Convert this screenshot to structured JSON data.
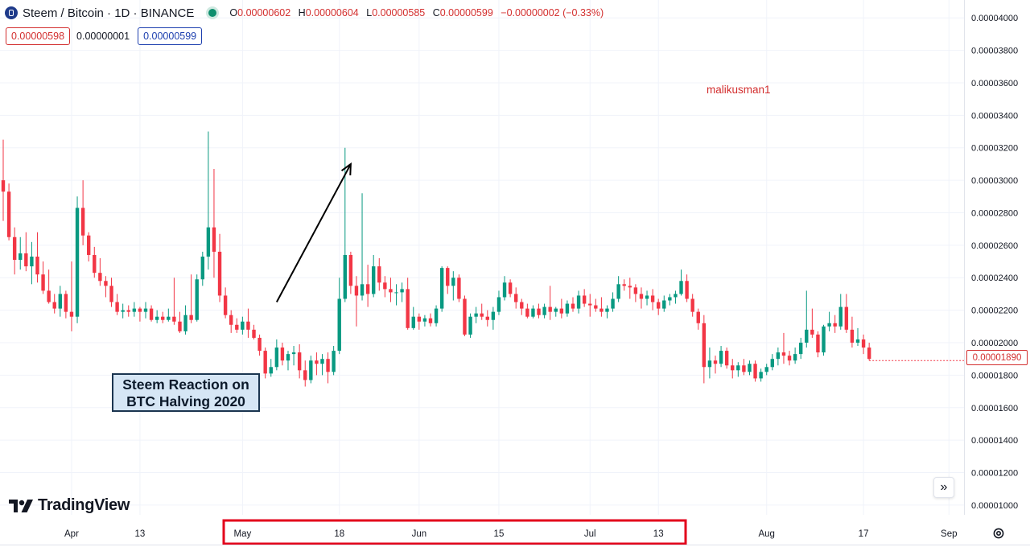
{
  "legend": {
    "title": "Steem / Bitcoin · 1D · BINANCE",
    "ohlc": [
      {
        "k": "O",
        "v": "0.00000602"
      },
      {
        "k": "H",
        "v": "0.00000604"
      },
      {
        "k": "L",
        "v": "0.00000585"
      },
      {
        "k": "C",
        "v": "0.00000599"
      }
    ],
    "change": "−0.00000002 (−0.33%)"
  },
  "price_boxes": {
    "sell": "0.00000598",
    "spread": "0.00000001",
    "buy": "0.00000599"
  },
  "annotation": {
    "line1": "Steem Reaction on",
    "line2": "BTC Halving 2020"
  },
  "watermark_user": "malikusman1",
  "brand": "TradingView",
  "last_price": "0.00001890",
  "colors": {
    "up": "#089981",
    "down": "#f23645",
    "grid": "#f0f3fa",
    "highlight": "#e3001b"
  },
  "chart_data": {
    "type": "candlestick",
    "title": "Steem / Bitcoin · 1D · BINANCE",
    "xlabel": "",
    "ylabel": "",
    "ylim": [
      9.4e-06,
      4.11e-05
    ],
    "yticks": [
      1e-05,
      1.2e-05,
      1.4e-05,
      1.6e-05,
      1.8e-05,
      2e-05,
      2.2e-05,
      2.4e-05,
      2.6e-05,
      2.8e-05,
      3e-05,
      3.2e-05,
      3.4e-05,
      3.6e-05,
      3.8e-05,
      4e-05
    ],
    "ytick_labels": [
      "0.00001000",
      "0.00001200",
      "0.00001400",
      "0.00001600",
      "0.00001800",
      "0.00002000",
      "0.00002200",
      "0.00002400",
      "0.00002600",
      "0.00002800",
      "0.00003000",
      "0.00003200",
      "0.00003400",
      "0.00003600",
      "0.00003800",
      "0.00004000"
    ],
    "xtick_labels": [
      {
        "label": "Apr",
        "index": 12
      },
      {
        "label": "13",
        "index": 24
      },
      {
        "label": "May",
        "index": 42
      },
      {
        "label": "18",
        "index": 59
      },
      {
        "label": "Jun",
        "index": 73
      },
      {
        "label": "15",
        "index": 87
      },
      {
        "label": "Jul",
        "index": 103
      },
      {
        "label": "13",
        "index": 115
      },
      {
        "label": "Aug",
        "index": 134
      },
      {
        "label": "17",
        "index": 151
      },
      {
        "label": "Sep",
        "index": 166
      }
    ],
    "highlighted_x_range": {
      "from_label": "May",
      "to_label": "13"
    },
    "annotation_arrow": {
      "from": {
        "index": 48,
        "price": 2.25e-05
      },
      "to": {
        "index": 61,
        "price": 3.1e-05
      }
    },
    "last_price": 1.89e-05,
    "candles": [
      [
        3e-05,
        3.25e-05,
        2.75e-05,
        2.93e-05
      ],
      [
        2.93e-05,
        2.98e-05,
        2.63e-05,
        2.65e-05
      ],
      [
        2.65e-05,
        2.71e-05,
        2.42e-05,
        2.51e-05
      ],
      [
        2.51e-05,
        2.65e-05,
        2.45e-05,
        2.55e-05
      ],
      [
        2.55e-05,
        2.68e-05,
        2.44e-05,
        2.47e-05
      ],
      [
        2.47e-05,
        2.62e-05,
        2.36e-05,
        2.53e-05
      ],
      [
        2.53e-05,
        2.68e-05,
        2.37e-05,
        2.42e-05
      ],
      [
        2.42e-05,
        2.5e-05,
        2.3e-05,
        2.32e-05
      ],
      [
        2.32e-05,
        2.45e-05,
        2.24e-05,
        2.25e-05
      ],
      [
        2.25e-05,
        2.3e-05,
        2.18e-05,
        2.21e-05
      ],
      [
        2.21e-05,
        2.35e-05,
        2.16e-05,
        2.3e-05
      ],
      [
        2.3e-05,
        2.32e-05,
        2.15e-05,
        2.19e-05
      ],
      [
        2.19e-05,
        2.5e-05,
        2.07e-05,
        2.16e-05
      ],
      [
        2.16e-05,
        2.9e-05,
        2.12e-05,
        2.83e-05
      ],
      [
        2.83e-05,
        3e-05,
        2.6e-05,
        2.66e-05
      ],
      [
        2.66e-05,
        2.68e-05,
        2.5e-05,
        2.54e-05
      ],
      [
        2.54e-05,
        2.59e-05,
        2.4e-05,
        2.43e-05
      ],
      [
        2.43e-05,
        2.52e-05,
        2.35e-05,
        2.38e-05
      ],
      [
        2.38e-05,
        2.41e-05,
        2.28e-05,
        2.35e-05
      ],
      [
        2.35e-05,
        2.4e-05,
        2.22e-05,
        2.25e-05
      ],
      [
        2.25e-05,
        2.3e-05,
        2.17e-05,
        2.19e-05
      ],
      [
        2.19e-05,
        2.24e-05,
        2.15e-05,
        2.2e-05
      ],
      [
        2.2e-05,
        2.23e-05,
        2.16e-05,
        2.19e-05
      ],
      [
        2.19e-05,
        2.25e-05,
        2.16e-05,
        2.21e-05
      ],
      [
        2.21e-05,
        2.22e-05,
        2.13e-05,
        2.19e-05
      ],
      [
        2.19e-05,
        2.25e-05,
        2.15e-05,
        2.21e-05
      ],
      [
        2.21e-05,
        2.23e-05,
        2.13e-05,
        2.14e-05
      ],
      [
        2.14e-05,
        2.2e-05,
        2.12e-05,
        2.16e-05
      ],
      [
        2.16e-05,
        2.19e-05,
        2.12e-05,
        2.14e-05
      ],
      [
        2.14e-05,
        2.21e-05,
        2.13e-05,
        2.16e-05
      ],
      [
        2.16e-05,
        2.4e-05,
        2.11e-05,
        2.13e-05
      ],
      [
        2.13e-05,
        2.19e-05,
        2.06e-05,
        2.07e-05
      ],
      [
        2.07e-05,
        2.23e-05,
        2.05e-05,
        2.17e-05
      ],
      [
        2.17e-05,
        2.42e-05,
        2.12e-05,
        2.14e-05
      ],
      [
        2.14e-05,
        2.42e-05,
        2.13e-05,
        2.39e-05
      ],
      [
        2.39e-05,
        2.56e-05,
        2.35e-05,
        2.53e-05
      ],
      [
        2.53e-05,
        3.3e-05,
        2.45e-05,
        2.71e-05
      ],
      [
        2.71e-05,
        3.07e-05,
        2.4e-05,
        2.56e-05
      ],
      [
        2.56e-05,
        2.67e-05,
        2.25e-05,
        2.29e-05
      ],
      [
        2.29e-05,
        2.34e-05,
        2.15e-05,
        2.17e-05
      ],
      [
        2.17e-05,
        2.2e-05,
        2.06e-05,
        2.11e-05
      ],
      [
        2.11e-05,
        2.15e-05,
        2.06e-05,
        2.08e-05
      ],
      [
        2.08e-05,
        2.16e-05,
        2.05e-05,
        2.13e-05
      ],
      [
        2.13e-05,
        2.21e-05,
        2.03e-05,
        2.08e-05
      ],
      [
        2.08e-05,
        2.11e-05,
        2.02e-05,
        2.03e-05
      ],
      [
        2.03e-05,
        2.05e-05,
        1.92e-05,
        1.95e-05
      ],
      [
        1.95e-05,
        1.97e-05,
        1.78e-05,
        1.81e-05
      ],
      [
        1.81e-05,
        1.9e-05,
        1.79e-05,
        1.85e-05
      ],
      [
        1.85e-05,
        2.02e-05,
        1.83e-05,
        1.97e-05
      ],
      [
        1.97e-05,
        2e-05,
        1.86e-05,
        1.89e-05
      ],
      [
        1.89e-05,
        1.95e-05,
        1.83e-05,
        1.93e-05
      ],
      [
        1.93e-05,
        1.98e-05,
        1.86e-05,
        1.94e-05
      ],
      [
        1.94e-05,
        1.99e-05,
        1.78e-05,
        1.83e-05
      ],
      [
        1.83e-05,
        1.89e-05,
        1.73e-05,
        1.77e-05
      ],
      [
        1.77e-05,
        1.92e-05,
        1.75e-05,
        1.89e-05
      ],
      [
        1.89e-05,
        1.94e-05,
        1.8e-05,
        1.87e-05
      ],
      [
        1.87e-05,
        1.93e-05,
        1.8e-05,
        1.9e-05
      ],
      [
        1.9e-05,
        1.94e-05,
        1.75e-05,
        1.82e-05
      ],
      [
        1.82e-05,
        1.98e-05,
        1.8e-05,
        1.95e-05
      ],
      [
        1.95e-05,
        2.4e-05,
        1.93e-05,
        2.27e-05
      ],
      [
        2.27e-05,
        3.2e-05,
        2.25e-05,
        2.54e-05
      ],
      [
        2.54e-05,
        2.56e-05,
        2.3e-05,
        2.35e-05
      ],
      [
        2.35e-05,
        2.41e-05,
        2.1e-05,
        2.29e-05
      ],
      [
        2.29e-05,
        2.92e-05,
        2.26e-05,
        2.36e-05
      ],
      [
        2.36e-05,
        2.48e-05,
        2.22e-05,
        2.3e-05
      ],
      [
        2.3e-05,
        2.54e-05,
        2.28e-05,
        2.47e-05
      ],
      [
        2.47e-05,
        2.52e-05,
        2.32e-05,
        2.37e-05
      ],
      [
        2.37e-05,
        2.41e-05,
        2.28e-05,
        2.33e-05
      ],
      [
        2.33e-05,
        2.4e-05,
        2.25e-05,
        2.31e-05
      ],
      [
        2.31e-05,
        2.36e-05,
        2.23e-05,
        2.31e-05
      ],
      [
        2.31e-05,
        2.37e-05,
        2.25e-05,
        2.33e-05
      ],
      [
        2.33e-05,
        2.4e-05,
        2.08e-05,
        2.09e-05
      ],
      [
        2.09e-05,
        2.22e-05,
        2.08e-05,
        2.16e-05
      ],
      [
        2.16e-05,
        2.18e-05,
        2.08e-05,
        2.13e-05
      ],
      [
        2.13e-05,
        2.17e-05,
        2.1e-05,
        2.15e-05
      ],
      [
        2.15e-05,
        2.18e-05,
        2.1e-05,
        2.12e-05
      ],
      [
        2.12e-05,
        2.23e-05,
        2.1e-05,
        2.21e-05
      ],
      [
        2.21e-05,
        2.47e-05,
        2.19e-05,
        2.46e-05
      ],
      [
        2.46e-05,
        2.47e-05,
        2.3e-05,
        2.35e-05
      ],
      [
        2.35e-05,
        2.44e-05,
        2.26e-05,
        2.4e-05
      ],
      [
        2.4e-05,
        2.42e-05,
        2.25e-05,
        2.27e-05
      ],
      [
        2.27e-05,
        2.29e-05,
        2.04e-05,
        2.05e-05
      ],
      [
        2.05e-05,
        2.18e-05,
        2.03e-05,
        2.16e-05
      ],
      [
        2.16e-05,
        2.22e-05,
        2.12e-05,
        2.18e-05
      ],
      [
        2.18e-05,
        2.24e-05,
        2.14e-05,
        2.16e-05
      ],
      [
        2.16e-05,
        2.2e-05,
        2.1e-05,
        2.14e-05
      ],
      [
        2.14e-05,
        2.22e-05,
        2.08e-05,
        2.19e-05
      ],
      [
        2.19e-05,
        2.32e-05,
        2.17e-05,
        2.28e-05
      ],
      [
        2.28e-05,
        2.41e-05,
        2.26e-05,
        2.37e-05
      ],
      [
        2.37e-05,
        2.39e-05,
        2.28e-05,
        2.3e-05
      ],
      [
        2.3e-05,
        2.34e-05,
        2.21e-05,
        2.25e-05
      ],
      [
        2.25e-05,
        2.27e-05,
        2.17e-05,
        2.21e-05
      ],
      [
        2.21e-05,
        2.24e-05,
        2.15e-05,
        2.16e-05
      ],
      [
        2.16e-05,
        2.23e-05,
        2.15e-05,
        2.21e-05
      ],
      [
        2.21e-05,
        2.24e-05,
        2.15e-05,
        2.17e-05
      ],
      [
        2.17e-05,
        2.24e-05,
        2.15e-05,
        2.22e-05
      ],
      [
        2.22e-05,
        2.35e-05,
        2.14e-05,
        2.19e-05
      ],
      [
        2.19e-05,
        2.22e-05,
        2.16e-05,
        2.21e-05
      ],
      [
        2.21e-05,
        2.27e-05,
        2.15e-05,
        2.18e-05
      ],
      [
        2.18e-05,
        2.26e-05,
        2.16e-05,
        2.24e-05
      ],
      [
        2.24e-05,
        2.28e-05,
        2.19e-05,
        2.21e-05
      ],
      [
        2.21e-05,
        2.32e-05,
        2.18e-05,
        2.29e-05
      ],
      [
        2.29e-05,
        2.33e-05,
        2.22e-05,
        2.24e-05
      ],
      [
        2.24e-05,
        2.3e-05,
        2.16e-05,
        2.23e-05
      ],
      [
        2.23e-05,
        2.27e-05,
        2.19e-05,
        2.21e-05
      ],
      [
        2.21e-05,
        2.28e-05,
        2.16e-05,
        2.19e-05
      ],
      [
        2.19e-05,
        2.23e-05,
        2.15e-05,
        2.21e-05
      ],
      [
        2.21e-05,
        2.31e-05,
        2.19e-05,
        2.27e-05
      ],
      [
        2.27e-05,
        2.41e-05,
        2.25e-05,
        2.36e-05
      ],
      [
        2.36e-05,
        2.39e-05,
        2.32e-05,
        2.35e-05
      ],
      [
        2.35e-05,
        2.4e-05,
        2.27e-05,
        2.34e-05
      ],
      [
        2.34e-05,
        2.36e-05,
        2.25e-05,
        2.3e-05
      ],
      [
        2.3e-05,
        2.34e-05,
        2.21e-05,
        2.27e-05
      ],
      [
        2.27e-05,
        2.32e-05,
        2.23e-05,
        2.29e-05
      ],
      [
        2.29e-05,
        2.33e-05,
        2.2e-05,
        2.25e-05
      ],
      [
        2.25e-05,
        2.27e-05,
        2.17e-05,
        2.21e-05
      ],
      [
        2.21e-05,
        2.29e-05,
        2.19e-05,
        2.26e-05
      ],
      [
        2.26e-05,
        2.3e-05,
        2.23e-05,
        2.28e-05
      ],
      [
        2.28e-05,
        2.32e-05,
        2.24e-05,
        2.3e-05
      ],
      [
        2.3e-05,
        2.45e-05,
        2.29e-05,
        2.38e-05
      ],
      [
        2.38e-05,
        2.42e-05,
        2.25e-05,
        2.27e-05
      ],
      [
        2.27e-05,
        2.3e-05,
        2.16e-05,
        2.19e-05
      ],
      [
        2.19e-05,
        2.21e-05,
        2.08e-05,
        2.12e-05
      ],
      [
        2.12e-05,
        2.17e-05,
        1.75e-05,
        1.85e-05
      ],
      [
        1.85e-05,
        1.97e-05,
        1.78e-05,
        1.89e-05
      ],
      [
        1.89e-05,
        1.92e-05,
        1.81e-05,
        1.87e-05
      ],
      [
        1.87e-05,
        1.98e-05,
        1.85e-05,
        1.95e-05
      ],
      [
        1.95e-05,
        1.97e-05,
        1.84e-05,
        1.86e-05
      ],
      [
        1.86e-05,
        1.9e-05,
        1.78e-05,
        1.83e-05
      ],
      [
        1.83e-05,
        1.88e-05,
        1.79e-05,
        1.86e-05
      ],
      [
        1.86e-05,
        1.9e-05,
        1.8e-05,
        1.82e-05
      ],
      [
        1.82e-05,
        1.89e-05,
        1.8e-05,
        1.87e-05
      ],
      [
        1.87e-05,
        1.89e-05,
        1.76e-05,
        1.78e-05
      ],
      [
        1.78e-05,
        1.84e-05,
        1.76e-05,
        1.82e-05
      ],
      [
        1.82e-05,
        1.87e-05,
        1.8e-05,
        1.85e-05
      ],
      [
        1.85e-05,
        1.93e-05,
        1.83e-05,
        1.9e-05
      ],
      [
        1.9e-05,
        1.97e-05,
        1.86e-05,
        1.94e-05
      ],
      [
        1.94e-05,
        2.06e-05,
        1.87e-05,
        1.92e-05
      ],
      [
        1.92e-05,
        1.95e-05,
        1.86e-05,
        1.89e-05
      ],
      [
        1.89e-05,
        1.97e-05,
        1.87e-05,
        1.93e-05
      ],
      [
        1.93e-05,
        2.03e-05,
        1.9e-05,
        2e-05
      ],
      [
        2e-05,
        2.32e-05,
        1.97e-05,
        2.08e-05
      ],
      [
        2.08e-05,
        2.21e-05,
        2.03e-05,
        2.05e-05
      ],
      [
        2.05e-05,
        2.07e-05,
        1.91e-05,
        1.94e-05
      ],
      [
        1.94e-05,
        2.11e-05,
        1.92e-05,
        2.1e-05
      ],
      [
        2.1e-05,
        2.19e-05,
        2.07e-05,
        2.12e-05
      ],
      [
        2.12e-05,
        2.17e-05,
        2.06e-05,
        2.1e-05
      ],
      [
        2.1e-05,
        2.3e-05,
        2.08e-05,
        2.22e-05
      ],
      [
        2.22e-05,
        2.3e-05,
        2.06e-05,
        2.08e-05
      ],
      [
        2.08e-05,
        2.16e-05,
        1.97e-05,
        2e-05
      ],
      [
        2e-05,
        2.09e-05,
        1.98e-05,
        2.02e-05
      ],
      [
        2.02e-05,
        2.05e-05,
        1.93e-05,
        1.97e-05
      ],
      [
        1.97e-05,
        2e-05,
        1.89e-05,
        1.9e-05
      ]
    ]
  }
}
